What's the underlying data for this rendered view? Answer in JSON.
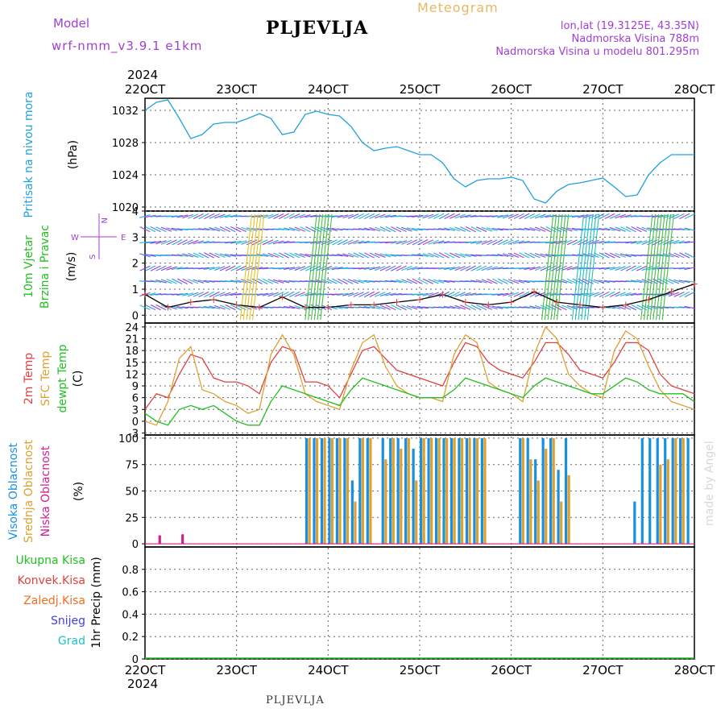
{
  "header": {
    "model_label": "Model",
    "model_name": "wrf-nmm_v3.9.1  e1km",
    "station": "PLJEVLJA",
    "meteogram": "Meteogram",
    "coords": "lon,lat (19.3125E, 43.35N)",
    "elevation": "Nadmorska Visina 788m",
    "elevation_model": "Nadmorska Visina u modelu 801.295m"
  },
  "footer_station": "PLJEVLJA",
  "watermark": "made by Angel",
  "x_axis": {
    "year": "2024",
    "ticks": [
      "22OCT",
      "23OCT",
      "24OCT",
      "25OCT",
      "26OCT",
      "27OCT",
      "28OCT"
    ]
  },
  "colors": {
    "pressure": "#20a0e0",
    "temp2m": "#e04040",
    "sfc": "#e0a030",
    "dew": "#20c020",
    "high_cloud": "#1890e0",
    "mid_cloud": "#e0a030",
    "low_cloud": "#d02090",
    "wind_label": "#20c020",
    "compass": "#a040d0"
  },
  "chart_data": [
    {
      "type": "line",
      "panel": "pressure",
      "ylabel_series": "Pritisak na nivou mora",
      "ylabel_unit": "(hPa)",
      "ylim": [
        1019.5,
        1033.5
      ],
      "yticks": [
        1020,
        1024,
        1028,
        1032
      ],
      "x_unit": "hours since 22OCT 00",
      "x": [
        0,
        3,
        6,
        9,
        12,
        15,
        18,
        21,
        24,
        27,
        30,
        33,
        36,
        39,
        42,
        45,
        48,
        51,
        54,
        57,
        60,
        63,
        66,
        69,
        72,
        75,
        78,
        81,
        84,
        87,
        90,
        93,
        96,
        99,
        102,
        105,
        108,
        111,
        114,
        117,
        120,
        123,
        126,
        129,
        132,
        135,
        138,
        141,
        144
      ],
      "series": [
        {
          "values": [
            1032.0,
            1033.0,
            1033.3,
            1031.0,
            1028.5,
            1029.0,
            1030.3,
            1030.5,
            1030.5,
            1031.0,
            1031.6,
            1031.0,
            1029.0,
            1029.3,
            1031.5,
            1031.9,
            1031.5,
            1031.3,
            1030.0,
            1028.0,
            1027.0,
            1027.3,
            1027.5,
            1027.0,
            1026.5,
            1026.5,
            1025.5,
            1023.5,
            1022.5,
            1023.3,
            1023.5,
            1023.5,
            1023.7,
            1023.3,
            1021.0,
            1020.5,
            1022.0,
            1022.8,
            1023.0,
            1023.3,
            1023.6,
            1022.5,
            1021.3,
            1021.5,
            1024.0,
            1025.5,
            1026.5,
            1026.5,
            1026.5
          ]
        }
      ]
    },
    {
      "type": "scatter",
      "panel": "wind",
      "ylabel_series": [
        "10m Vjetar",
        "Brzina i Pravac"
      ],
      "ylabel_unit": "(m/s)",
      "compass": {
        "w": "W",
        "e": "E",
        "n": "N",
        "s": "S"
      },
      "ylim": [
        -0.3,
        4.0
      ],
      "yticks": [
        0,
        1,
        2,
        3,
        4
      ],
      "speed_x": [
        0,
        6,
        12,
        18,
        24,
        30,
        36,
        42,
        48,
        54,
        60,
        66,
        72,
        78,
        84,
        90,
        96,
        102,
        108,
        114,
        120,
        126,
        132,
        138,
        144
      ],
      "series": [
        {
          "values": [
            0.8,
            0.3,
            0.5,
            0.6,
            0.4,
            0.3,
            0.7,
            0.3,
            0.3,
            0.4,
            0.4,
            0.5,
            0.6,
            0.8,
            0.5,
            0.4,
            0.5,
            0.9,
            0.5,
            0.4,
            0.3,
            0.4,
            0.6,
            0.9,
            1.2
          ]
        }
      ]
    },
    {
      "type": "line",
      "panel": "temperature",
      "ylabel_series": [
        "2m Temp",
        "SFC Temp",
        "dewpt Temp"
      ],
      "ylabel_unit": "(C)",
      "ylim": [
        -3.5,
        25
      ],
      "yticks": [
        -3,
        0,
        3,
        6,
        9,
        12,
        15,
        18,
        21,
        24
      ],
      "x_unit": "hours since 22OCT 00",
      "x": [
        0,
        3,
        6,
        9,
        12,
        15,
        18,
        21,
        24,
        27,
        30,
        33,
        36,
        39,
        42,
        45,
        48,
        51,
        54,
        57,
        60,
        63,
        66,
        69,
        72,
        75,
        78,
        81,
        84,
        87,
        90,
        93,
        96,
        99,
        102,
        105,
        108,
        111,
        114,
        117,
        120,
        123,
        126,
        129,
        132,
        135,
        138,
        141,
        144
      ],
      "series": [
        {
          "name": "2m Temp",
          "values": [
            3,
            7,
            6,
            12,
            17,
            16,
            11,
            10,
            10,
            9,
            7,
            15,
            19,
            18,
            10,
            10,
            9,
            6,
            12,
            18,
            19,
            16,
            13,
            12,
            11,
            10,
            9,
            15,
            20,
            19,
            15,
            13,
            12,
            11,
            15,
            20,
            20,
            17,
            13,
            12,
            11,
            15,
            20,
            20,
            18,
            12,
            9,
            8,
            7
          ]
        },
        {
          "name": "SFC Temp",
          "values": [
            0,
            -1,
            5,
            16,
            19,
            8,
            7,
            5,
            4,
            2,
            3,
            17,
            22,
            17,
            7,
            5,
            4,
            3,
            13,
            20,
            22,
            14,
            9,
            7,
            6,
            6,
            5,
            17,
            22,
            20,
            10,
            8,
            7,
            5,
            17,
            24,
            21,
            12,
            9,
            7,
            6,
            18,
            23,
            21,
            14,
            8,
            5,
            4,
            3
          ]
        },
        {
          "name": "dewpt Temp",
          "values": [
            2,
            0,
            -1,
            3,
            4,
            3,
            4,
            2,
            0,
            -1,
            -1,
            5,
            9,
            8,
            7,
            6,
            5,
            4,
            8,
            11,
            10,
            9,
            8,
            7,
            6,
            6,
            6,
            8,
            11,
            10,
            9,
            8,
            7,
            6,
            9,
            11,
            10,
            9,
            8,
            7,
            7,
            9,
            11,
            10,
            8,
            7,
            7,
            7,
            5
          ]
        }
      ]
    },
    {
      "type": "bar",
      "panel": "cloud",
      "ylabel_series": [
        "Visoka Oblacnost",
        "Srednja Oblacnost",
        "Niska Oblacnost"
      ],
      "ylabel_unit": "(%)",
      "ylim": [
        -3,
        103
      ],
      "yticks": [
        0,
        25,
        50,
        75,
        100
      ],
      "x_unit": "hours since 22OCT 00",
      "x": [
        0,
        2,
        4,
        6,
        8,
        10,
        12,
        14,
        16,
        18,
        20,
        22,
        24,
        26,
        28,
        30,
        32,
        34,
        36,
        38,
        40,
        42,
        44,
        46,
        48,
        50,
        52,
        54,
        56,
        58,
        60,
        62,
        64,
        66,
        68,
        70,
        72,
        74,
        76,
        78,
        80,
        82,
        84,
        86,
        88,
        90,
        92,
        94,
        96,
        98,
        100,
        102,
        104,
        106,
        108,
        110,
        112,
        114,
        116,
        118,
        120,
        122,
        124,
        126,
        128,
        130,
        132,
        134,
        136,
        138,
        140,
        142
      ],
      "series": [
        {
          "name": "Visoka Oblacnost",
          "values": [
            0,
            0,
            0,
            0,
            0,
            0,
            0,
            0,
            0,
            0,
            0,
            0,
            0,
            0,
            0,
            0,
            0,
            0,
            0,
            0,
            0,
            100,
            100,
            100,
            100,
            100,
            100,
            60,
            100,
            100,
            0,
            100,
            100,
            100,
            100,
            90,
            100,
            100,
            100,
            100,
            100,
            100,
            100,
            100,
            100,
            0,
            0,
            0,
            0,
            100,
            100,
            80,
            100,
            100,
            70,
            100,
            0,
            0,
            0,
            0,
            0,
            0,
            0,
            0,
            40,
            100,
            100,
            100,
            100,
            100,
            100,
            100
          ]
        },
        {
          "name": "Srednja Oblacnost",
          "values": [
            0,
            0,
            0,
            0,
            0,
            0,
            0,
            0,
            0,
            0,
            0,
            0,
            0,
            0,
            0,
            0,
            0,
            0,
            0,
            0,
            0,
            100,
            100,
            100,
            100,
            100,
            100,
            40,
            100,
            100,
            0,
            80,
            100,
            90,
            100,
            60,
            100,
            100,
            100,
            100,
            100,
            100,
            100,
            100,
            100,
            0,
            0,
            0,
            0,
            100,
            80,
            60,
            90,
            100,
            40,
            65,
            0,
            0,
            0,
            0,
            0,
            0,
            0,
            0,
            0,
            0,
            0,
            75,
            80,
            100,
            100,
            0
          ]
        },
        {
          "name": "Niska Oblacnost",
          "values": [
            0,
            8,
            0,
            0,
            9,
            0,
            0,
            0,
            0,
            0,
            0,
            0,
            0,
            0,
            0,
            0,
            0,
            0,
            0,
            0,
            0,
            0,
            0,
            0,
            0,
            0,
            0,
            0,
            0,
            0,
            0,
            0,
            0,
            0,
            0,
            0,
            0,
            0,
            0,
            0,
            0,
            0,
            0,
            0,
            0,
            0,
            0,
            0,
            0,
            0,
            0,
            0,
            0,
            0,
            0,
            0,
            0,
            0,
            0,
            0,
            0,
            0,
            0,
            0,
            0,
            0,
            0,
            0,
            0,
            0,
            0,
            0
          ]
        }
      ]
    },
    {
      "type": "bar",
      "panel": "precip",
      "ylabel_unit": "1hr Precip (mm)",
      "legend": [
        "Ukupna Kisa",
        "Konvek.Kisa",
        "Zaledj.Kisa",
        "Snijeg",
        "Grad"
      ],
      "legend_colors": [
        "#20c020",
        "#e04040",
        "#f07020",
        "#4040e0",
        "#20c0c0"
      ],
      "ylim": [
        0,
        1.0
      ],
      "yticks": [
        "0",
        "0.2",
        "0.4",
        "0.6",
        "0.8"
      ],
      "series": [
        {
          "name": "Ukupna Kisa",
          "values": [
            0
          ]
        }
      ]
    }
  ]
}
